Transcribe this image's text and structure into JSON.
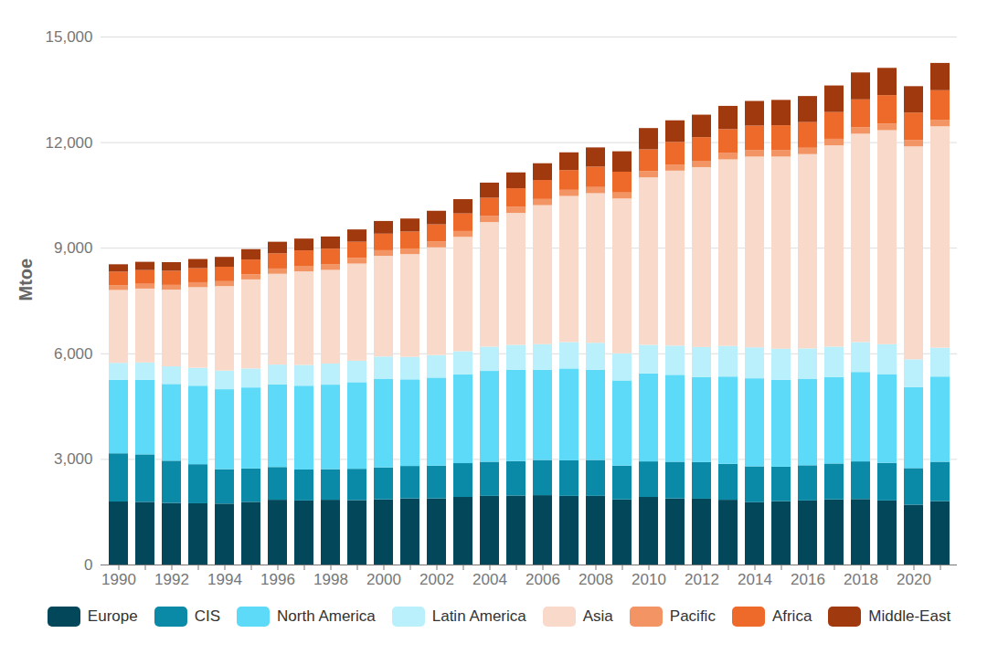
{
  "chart_data": {
    "type": "bar",
    "stacked": true,
    "grid": true,
    "y_label": "Mtoe",
    "categories": [
      "1990",
      null,
      "1992",
      null,
      "1994",
      null,
      "1996",
      null,
      "1998",
      null,
      "2000",
      null,
      "2002",
      null,
      "2004",
      null,
      "2006",
      null,
      "2008",
      null,
      "2010",
      null,
      "2012",
      null,
      "2014",
      null,
      "2016",
      null,
      "2018",
      null,
      "2020",
      null
    ],
    "ylim": [
      0,
      15000
    ],
    "yticks": [
      0,
      {
        "value": 3000,
        "label": "3,000"
      },
      {
        "value": 6000,
        "label": "6,000"
      },
      {
        "value": 9000,
        "label": "9,000"
      },
      {
        "value": 12000,
        "label": "12,000"
      },
      {
        "value": 15000,
        "label": "15,000"
      }
    ],
    "legend": "bottom",
    "series": [
      {
        "name": "Europe",
        "color": "#02485a",
        "values": [
          1790,
          1780,
          1750,
          1740,
          1730,
          1780,
          1840,
          1820,
          1840,
          1830,
          1850,
          1880,
          1880,
          1920,
          1950,
          1960,
          1970,
          1950,
          1950,
          1850,
          1920,
          1880,
          1870,
          1840,
          1770,
          1800,
          1820,
          1850,
          1860,
          1820,
          1700,
          1800
        ]
      },
      {
        "name": "CIS",
        "color": "#0a8aa6",
        "values": [
          1370,
          1350,
          1200,
          1110,
          980,
          950,
          930,
          880,
          870,
          890,
          910,
          920,
          930,
          960,
          970,
          980,
          1000,
          1010,
          1020,
          960,
          1010,
          1040,
          1040,
          1020,
          1020,
          980,
          1000,
          1020,
          1070,
          1070,
          1040,
          1120
        ]
      },
      {
        "name": "North America",
        "color": "#5cdaf8",
        "values": [
          2090,
          2120,
          2180,
          2230,
          2270,
          2300,
          2350,
          2380,
          2400,
          2460,
          2520,
          2460,
          2500,
          2520,
          2580,
          2590,
          2560,
          2610,
          2560,
          2420,
          2500,
          2470,
          2420,
          2480,
          2500,
          2470,
          2460,
          2460,
          2540,
          2520,
          2300,
          2420
        ]
      },
      {
        "name": "Latin America",
        "color": "#b9f0fb",
        "values": [
          480,
          490,
          500,
          510,
          530,
          540,
          560,
          590,
          600,
          610,
          630,
          640,
          640,
          660,
          690,
          710,
          730,
          750,
          770,
          770,
          810,
          830,
          850,
          870,
          880,
          880,
          860,
          860,
          850,
          850,
          790,
          820
        ]
      },
      {
        "name": "Asia",
        "color": "#f8d9ca",
        "values": [
          2070,
          2100,
          2180,
          2290,
          2400,
          2530,
          2580,
          2660,
          2660,
          2760,
          2860,
          2920,
          3060,
          3250,
          3540,
          3750,
          3950,
          4150,
          4250,
          4400,
          4760,
          4970,
          5110,
          5300,
          5420,
          5460,
          5520,
          5720,
          5920,
          6080,
          6050,
          6290
        ]
      },
      {
        "name": "Pacific",
        "color": "#f29463",
        "values": [
          130,
          135,
          135,
          140,
          140,
          145,
          150,
          155,
          155,
          160,
          160,
          160,
          165,
          165,
          170,
          170,
          175,
          175,
          175,
          170,
          175,
          175,
          180,
          180,
          180,
          180,
          180,
          185,
          185,
          185,
          180,
          185
        ]
      },
      {
        "name": "Africa",
        "color": "#ee6a2b",
        "values": [
          390,
          390,
          400,
          400,
          410,
          420,
          430,
          440,
          450,
          460,
          470,
          480,
          490,
          500,
          520,
          530,
          540,
          560,
          580,
          590,
          620,
          640,
          670,
          680,
          700,
          710,
          730,
          760,
          790,
          810,
          780,
          840
        ]
      },
      {
        "name": "Middle-East",
        "color": "#a1390f",
        "values": [
          210,
          235,
          245,
          260,
          280,
          295,
          330,
          335,
          345,
          350,
          360,
          370,
          385,
          405,
          430,
          450,
          475,
          505,
          545,
          580,
          605,
          615,
          640,
          660,
          700,
          720,
          740,
          755,
          765,
          775,
          750,
          775
        ]
      }
    ]
  }
}
